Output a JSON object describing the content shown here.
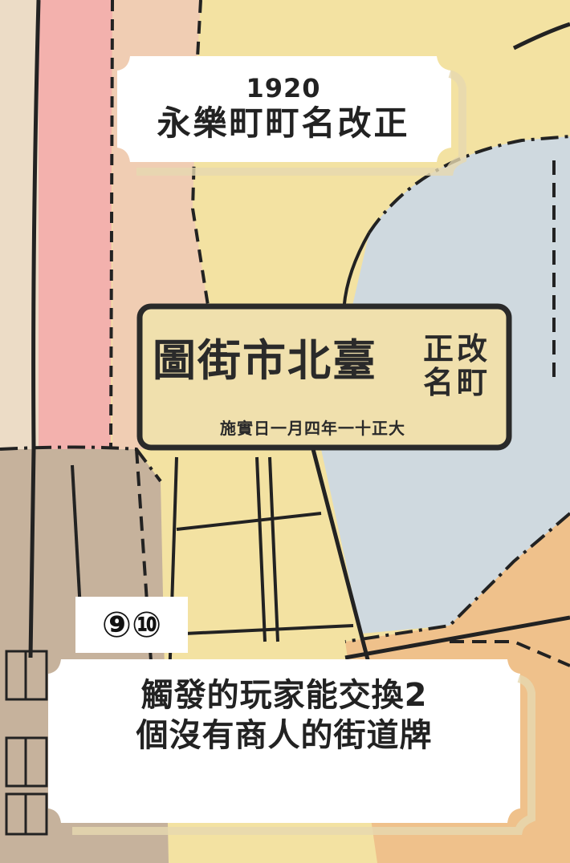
{
  "card": {
    "year": "1920",
    "title": "永樂町町名改正",
    "sign": {
      "main": "圖街市北臺",
      "side_top": "正改",
      "side_bottom": "名町",
      "date": "施實日一月四年一十正大"
    },
    "badge": "⑨⑩",
    "description_lines": [
      "觸發的玩家能交換2",
      "個沒有商人的街道牌"
    ]
  },
  "colors": {
    "pink": "#f3b1ad",
    "peach": "#f0cdb3",
    "yellow": "#f3e2a2",
    "blue": "#cfd9df",
    "tan": "#c6b29c",
    "orange": "#efc18b",
    "ink": "#222222",
    "panel": "#ffffff",
    "sign_bg": "#f0e0ad"
  }
}
